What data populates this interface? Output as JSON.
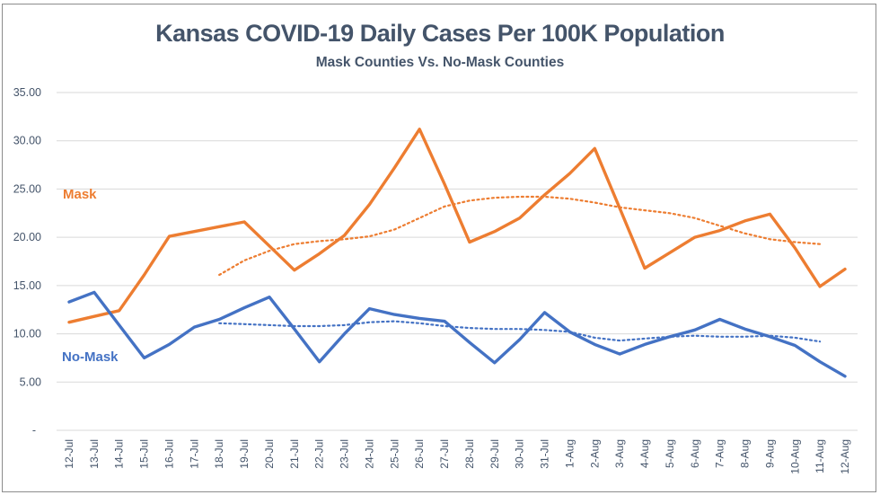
{
  "chart_data": {
    "type": "line",
    "title": "Kansas COVID-19 Daily Cases Per 100K Population",
    "subtitle": "Mask Counties Vs. No-Mask Counties",
    "xlabel": "",
    "ylabel": "",
    "ylim": [
      0,
      35
    ],
    "yticks": [
      0,
      5,
      10,
      15,
      20,
      25,
      30,
      35
    ],
    "ytick_labels": [
      "-",
      "5.00",
      "10.00",
      "15.00",
      "20.00",
      "25.00",
      "30.00",
      "35.00"
    ],
    "grid": true,
    "legend": "inline labels at left",
    "categories": [
      "12-Jul",
      "13-Jul",
      "14-Jul",
      "15-Jul",
      "16-Jul",
      "17-Jul",
      "18-Jul",
      "19-Jul",
      "20-Jul",
      "21-Jul",
      "22-Jul",
      "23-Jul",
      "24-Jul",
      "25-Jul",
      "26-Jul",
      "27-Jul",
      "28-Jul",
      "29-Jul",
      "30-Jul",
      "31-Jul",
      "1-Aug",
      "2-Aug",
      "3-Aug",
      "4-Aug",
      "5-Aug",
      "6-Aug",
      "7-Aug",
      "8-Aug",
      "9-Aug",
      "10-Aug",
      "11-Aug",
      "12-Aug"
    ],
    "series": [
      {
        "name": "Mask",
        "color": "#ed7d31",
        "values": [
          11.2,
          11.8,
          12.4,
          16.1,
          20.1,
          20.6,
          21.1,
          21.6,
          19.1,
          16.6,
          18.3,
          20.2,
          23.4,
          27.2,
          31.2,
          25.5,
          19.5,
          20.6,
          22.0,
          24.4,
          26.6,
          29.2,
          23.0,
          16.8,
          18.4,
          20.0,
          20.7,
          21.7,
          22.4,
          18.9,
          14.9,
          16.7
        ]
      },
      {
        "name": "No-Mask",
        "color": "#4472c4",
        "values": [
          13.3,
          14.3,
          10.9,
          7.5,
          8.9,
          10.7,
          11.5,
          12.7,
          13.8,
          10.5,
          7.1,
          10.0,
          12.6,
          12.0,
          11.6,
          11.3,
          9.1,
          7.0,
          9.4,
          12.2,
          10.2,
          8.9,
          7.9,
          8.9,
          9.7,
          10.4,
          11.5,
          10.5,
          9.7,
          8.8,
          7.1,
          5.6
        ]
      }
    ],
    "trendlines": [
      {
        "name": "Mask trend",
        "color": "#ed7d31",
        "style": "dotted",
        "start_category": "18-Jul",
        "values": [
          16.1,
          17.6,
          18.6,
          19.3,
          19.6,
          19.8,
          20.1,
          20.8,
          22.0,
          23.2,
          23.8,
          24.1,
          24.2,
          24.2,
          24.0,
          23.6,
          23.1,
          22.8,
          22.5,
          22.0,
          21.2,
          20.4,
          19.8,
          19.5,
          19.3
        ]
      },
      {
        "name": "No-Mask trend",
        "color": "#4472c4",
        "style": "dotted",
        "start_category": "18-Jul",
        "values": [
          11.1,
          11.0,
          10.9,
          10.8,
          10.8,
          10.9,
          11.2,
          11.3,
          11.1,
          10.8,
          10.6,
          10.5,
          10.5,
          10.4,
          10.2,
          9.6,
          9.3,
          9.5,
          9.7,
          9.8,
          9.7,
          9.7,
          9.8,
          9.6,
          9.2
        ]
      }
    ]
  },
  "labels": {
    "mask": "Mask",
    "no_mask": "No-Mask"
  }
}
